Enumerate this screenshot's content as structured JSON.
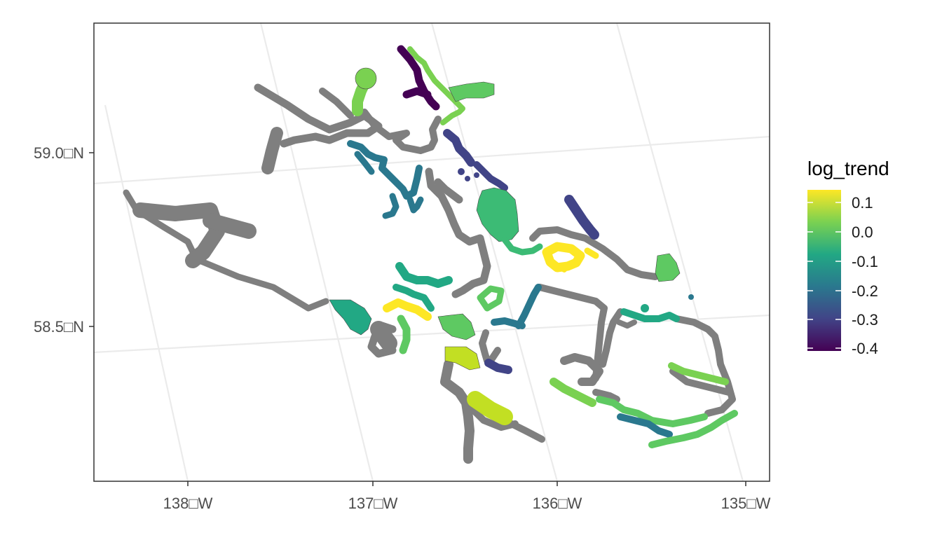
{
  "axes": {
    "y_ticks": [
      "59.0□N",
      "58.5□N"
    ],
    "x_ticks": [
      "138□W",
      "137□W",
      "136□W",
      "135□W"
    ]
  },
  "legend": {
    "title": "log_trend",
    "labels": [
      "0.1",
      "0.0",
      "-0.1",
      "-0.2",
      "-0.3",
      "-0.4"
    ],
    "colors": [
      "#fde725",
      "#7ad151",
      "#22a884",
      "#2a788e",
      "#414487",
      "#440154"
    ]
  },
  "colors": {
    "no_data": "#7f7f7f",
    "panel_border": "#333333",
    "grid": "#ebebeb"
  }
}
